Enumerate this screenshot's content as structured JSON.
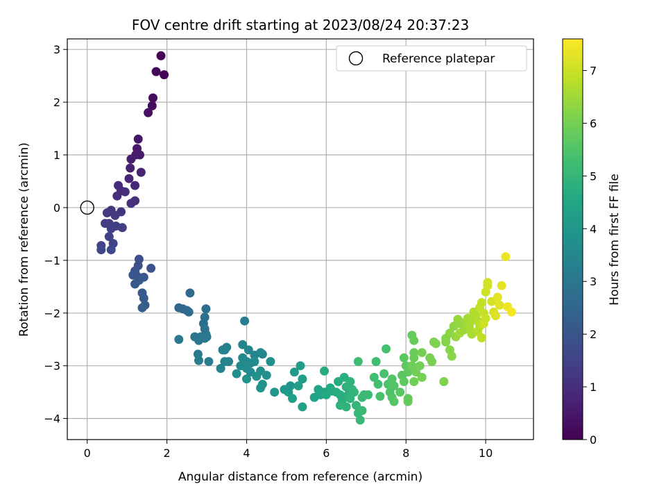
{
  "chart_data": {
    "type": "scatter",
    "title": "FOV centre drift starting at 2023/08/24 20:37:23",
    "xlabel": "Angular distance from reference (arcmin)",
    "ylabel": "Rotation from reference (arcmin)",
    "xlim": [
      -0.5,
      11.2
    ],
    "ylim": [
      -4.4,
      3.2
    ],
    "xticks": [
      0,
      2,
      4,
      6,
      8,
      10
    ],
    "yticks": [
      -4,
      -3,
      -2,
      -1,
      0,
      1,
      2,
      3
    ],
    "grid": true,
    "colormap": "viridis",
    "colorbar": {
      "label": "Hours from first FF file",
      "range": [
        0,
        7.6
      ],
      "ticks": [
        0,
        1,
        2,
        3,
        4,
        5,
        6,
        7
      ]
    },
    "legend": {
      "position": "top-right",
      "entries": [
        {
          "name": "Reference platepar",
          "marker": "open-circle"
        }
      ]
    },
    "reference_point": {
      "x": 0,
      "y": 0
    },
    "points": [
      [
        1.85,
        2.88,
        0.05
      ],
      [
        1.93,
        2.52,
        0.08
      ],
      [
        1.73,
        2.58,
        0.12
      ],
      [
        1.65,
        2.08,
        0.2
      ],
      [
        1.63,
        1.93,
        0.25
      ],
      [
        1.53,
        1.8,
        0.3
      ],
      [
        1.28,
        1.3,
        0.45
      ],
      [
        1.25,
        1.12,
        0.5
      ],
      [
        1.22,
        1.0,
        0.55
      ],
      [
        1.32,
        1.0,
        0.58
      ],
      [
        1.1,
        0.92,
        0.62
      ],
      [
        1.08,
        0.75,
        0.7
      ],
      [
        1.35,
        0.67,
        0.72
      ],
      [
        1.05,
        0.55,
        0.8
      ],
      [
        1.2,
        0.42,
        0.85
      ],
      [
        0.78,
        0.42,
        0.9
      ],
      [
        0.85,
        0.32,
        0.95
      ],
      [
        0.95,
        0.3,
        0.98
      ],
      [
        0.75,
        0.22,
        1.0
      ],
      [
        1.2,
        0.13,
        1.05
      ],
      [
        1.1,
        0.08,
        1.1
      ],
      [
        0.85,
        -0.08,
        1.15
      ],
      [
        0.6,
        -0.05,
        1.2
      ],
      [
        0.5,
        -0.1,
        1.25
      ],
      [
        0.7,
        -0.15,
        1.3
      ],
      [
        0.45,
        -0.3,
        1.32
      ],
      [
        0.55,
        -0.3,
        1.35
      ],
      [
        0.72,
        -0.35,
        1.38
      ],
      [
        0.88,
        -0.38,
        1.4
      ],
      [
        0.6,
        -0.4,
        1.42
      ],
      [
        0.55,
        -0.55,
        1.45
      ],
      [
        0.65,
        -0.68,
        1.5
      ],
      [
        0.35,
        -0.72,
        1.55
      ],
      [
        0.35,
        -0.8,
        1.6
      ],
      [
        0.6,
        -0.8,
        1.62
      ],
      [
        1.3,
        -0.98,
        1.8
      ],
      [
        1.28,
        -1.1,
        1.85
      ],
      [
        1.6,
        -1.15,
        1.9
      ],
      [
        1.2,
        -1.2,
        1.95
      ],
      [
        1.15,
        -1.28,
        2.0
      ],
      [
        1.25,
        -1.3,
        2.02
      ],
      [
        1.42,
        -1.32,
        2.05
      ],
      [
        1.3,
        -1.38,
        2.08
      ],
      [
        1.2,
        -1.45,
        2.1
      ],
      [
        1.38,
        -1.62,
        2.12
      ],
      [
        1.42,
        -1.72,
        2.15
      ],
      [
        1.45,
        -1.85,
        2.2
      ],
      [
        1.38,
        -1.9,
        2.25
      ],
      [
        2.3,
        -1.9,
        2.5
      ],
      [
        2.4,
        -1.92,
        2.55
      ],
      [
        2.5,
        -1.95,
        2.6
      ],
      [
        2.58,
        -1.62,
        2.65
      ],
      [
        2.55,
        -1.98,
        2.7
      ],
      [
        2.98,
        -1.92,
        2.75
      ],
      [
        2.95,
        -2.08,
        2.78
      ],
      [
        2.92,
        -2.2,
        2.8
      ],
      [
        2.95,
        -2.3,
        2.85
      ],
      [
        2.98,
        -2.4,
        2.88
      ],
      [
        3.0,
        -2.45,
        2.9
      ],
      [
        2.85,
        -2.45,
        2.92
      ],
      [
        2.7,
        -2.45,
        2.95
      ],
      [
        2.3,
        -2.5,
        3.0
      ],
      [
        2.8,
        -2.52,
        3.02
      ],
      [
        2.95,
        -2.48,
        3.05
      ],
      [
        2.78,
        -2.78,
        3.1
      ],
      [
        2.8,
        -2.9,
        3.12
      ],
      [
        3.05,
        -2.92,
        3.15
      ],
      [
        3.95,
        -2.15,
        3.2
      ],
      [
        3.45,
        -2.7,
        3.25
      ],
      [
        3.5,
        -2.65,
        3.28
      ],
      [
        3.4,
        -2.7,
        3.3
      ],
      [
        3.45,
        -2.92,
        3.32
      ],
      [
        3.35,
        -3.05,
        3.35
      ],
      [
        3.55,
        -2.92,
        3.38
      ],
      [
        3.9,
        -2.6,
        3.4
      ],
      [
        4.05,
        -2.7,
        3.42
      ],
      [
        4.2,
        -2.8,
        3.45
      ],
      [
        4.35,
        -2.75,
        3.48
      ],
      [
        4.4,
        -2.78,
        3.5
      ],
      [
        3.9,
        -2.85,
        3.52
      ],
      [
        4.0,
        -2.92,
        3.55
      ],
      [
        4.1,
        -2.95,
        3.58
      ],
      [
        4.2,
        -2.92,
        3.6
      ],
      [
        3.85,
        -3.0,
        3.62
      ],
      [
        4.0,
        -3.05,
        3.65
      ],
      [
        4.1,
        -3.12,
        3.68
      ],
      [
        3.75,
        -3.15,
        3.7
      ],
      [
        4.35,
        -3.1,
        3.72
      ],
      [
        4.5,
        -3.18,
        3.75
      ],
      [
        4.6,
        -2.92,
        3.78
      ],
      [
        4.25,
        -3.2,
        3.8
      ],
      [
        4.0,
        -3.25,
        3.82
      ],
      [
        4.4,
        -3.35,
        3.85
      ],
      [
        4.35,
        -3.42,
        3.88
      ],
      [
        4.7,
        -3.5,
        3.9
      ],
      [
        4.95,
        -3.45,
        3.95
      ],
      [
        5.1,
        -3.38,
        4.0
      ],
      [
        5.05,
        -3.5,
        4.05
      ],
      [
        5.2,
        -3.12,
        4.1
      ],
      [
        5.35,
        -3.0,
        4.15
      ],
      [
        5.4,
        -3.25,
        4.2
      ],
      [
        5.3,
        -3.38,
        4.22
      ],
      [
        5.15,
        -3.62,
        4.25
      ],
      [
        5.4,
        -3.78,
        4.3
      ],
      [
        5.7,
        -3.6,
        4.35
      ],
      [
        5.8,
        -3.45,
        4.4
      ],
      [
        5.95,
        -3.5,
        4.45
      ],
      [
        5.85,
        -3.55,
        4.5
      ],
      [
        6.1,
        -3.42,
        4.55
      ],
      [
        6.0,
        -3.55,
        4.6
      ],
      [
        6.15,
        -3.48,
        4.62
      ],
      [
        5.95,
        -3.1,
        4.65
      ],
      [
        6.3,
        -3.3,
        4.68
      ],
      [
        6.25,
        -3.5,
        4.7
      ],
      [
        6.35,
        -3.55,
        4.72
      ],
      [
        6.4,
        -3.65,
        4.75
      ],
      [
        6.45,
        -3.22,
        4.78
      ],
      [
        6.5,
        -3.4,
        4.8
      ],
      [
        6.55,
        -3.55,
        4.82
      ],
      [
        6.6,
        -3.3,
        4.85
      ],
      [
        6.6,
        -3.62,
        4.88
      ],
      [
        6.5,
        -3.78,
        4.9
      ],
      [
        6.35,
        -3.75,
        4.92
      ],
      [
        6.65,
        -3.45,
        4.95
      ],
      [
        6.7,
        -3.5,
        4.98
      ],
      [
        6.75,
        -3.75,
        5.0
      ],
      [
        6.8,
        -3.9,
        5.02
      ],
      [
        6.85,
        -4.03,
        5.05
      ],
      [
        6.9,
        -3.85,
        5.08
      ],
      [
        6.9,
        -3.6,
        5.1
      ],
      [
        6.95,
        -3.55,
        5.12
      ],
      [
        7.05,
        -3.55,
        5.15
      ],
      [
        6.8,
        -2.92,
        5.2
      ],
      [
        7.25,
        -2.92,
        5.25
      ],
      [
        7.2,
        -3.22,
        5.28
      ],
      [
        7.3,
        -3.35,
        5.3
      ],
      [
        7.5,
        -2.68,
        5.35
      ],
      [
        7.45,
        -3.15,
        5.38
      ],
      [
        7.35,
        -3.58,
        5.4
      ],
      [
        7.55,
        -3.35,
        5.45
      ],
      [
        7.6,
        -3.5,
        5.48
      ],
      [
        7.65,
        -3.25,
        5.5
      ],
      [
        7.7,
        -3.38,
        5.52
      ],
      [
        7.65,
        -3.6,
        5.55
      ],
      [
        7.7,
        -3.68,
        5.58
      ],
      [
        7.85,
        -3.5,
        5.6
      ],
      [
        7.9,
        -3.18,
        5.62
      ],
      [
        7.95,
        -2.85,
        5.65
      ],
      [
        8.0,
        -3.0,
        5.68
      ],
      [
        7.95,
        -3.3,
        5.7
      ],
      [
        8.05,
        -3.12,
        5.72
      ],
      [
        8.05,
        -3.62,
        5.75
      ],
      [
        8.05,
        -3.68,
        5.78
      ],
      [
        8.15,
        -2.42,
        5.8
      ],
      [
        8.2,
        -2.52,
        5.82
      ],
      [
        8.2,
        -2.75,
        5.85
      ],
      [
        8.2,
        -2.85,
        5.88
      ],
      [
        8.15,
        -3.0,
        5.9
      ],
      [
        8.25,
        -3.12,
        5.92
      ],
      [
        8.2,
        -3.3,
        5.95
      ],
      [
        8.35,
        -3.0,
        5.98
      ],
      [
        8.4,
        -2.75,
        6.0
      ],
      [
        8.4,
        -3.22,
        6.02
      ],
      [
        8.6,
        -2.85,
        6.05
      ],
      [
        8.65,
        -2.92,
        6.08
      ],
      [
        8.7,
        -2.55,
        6.1
      ],
      [
        8.75,
        -2.58,
        6.12
      ],
      [
        8.95,
        -3.3,
        6.15
      ],
      [
        9.0,
        -2.48,
        6.18
      ],
      [
        9.0,
        -2.55,
        6.2
      ],
      [
        9.1,
        -2.7,
        6.22
      ],
      [
        9.15,
        -2.82,
        6.25
      ],
      [
        9.1,
        -2.38,
        6.28
      ],
      [
        9.2,
        -2.25,
        6.3
      ],
      [
        9.3,
        -2.2,
        6.35
      ],
      [
        9.25,
        -2.45,
        6.38
      ],
      [
        9.3,
        -2.12,
        6.4
      ],
      [
        9.4,
        -2.18,
        6.42
      ],
      [
        9.45,
        -2.32,
        6.45
      ],
      [
        9.5,
        -2.28,
        6.48
      ],
      [
        9.35,
        -2.38,
        6.5
      ],
      [
        9.55,
        -2.1,
        6.55
      ],
      [
        9.6,
        -2.2,
        6.58
      ],
      [
        9.65,
        -2.4,
        6.6
      ],
      [
        9.6,
        -2.3,
        6.62
      ],
      [
        9.7,
        -2.12,
        6.65
      ],
      [
        9.7,
        -1.98,
        6.7
      ],
      [
        9.75,
        -2.05,
        6.72
      ],
      [
        9.8,
        -2.15,
        6.75
      ],
      [
        9.85,
        -2.25,
        6.78
      ],
      [
        9.8,
        -2.35,
        6.8
      ],
      [
        9.9,
        -2.47,
        6.85
      ],
      [
        9.85,
        -1.9,
        6.88
      ],
      [
        9.9,
        -1.8,
        6.9
      ],
      [
        9.95,
        -2.0,
        6.95
      ],
      [
        10.0,
        -2.1,
        7.0
      ],
      [
        9.95,
        -2.2,
        7.02
      ],
      [
        10.0,
        -1.6,
        7.05
      ],
      [
        10.05,
        -1.42,
        7.08
      ],
      [
        10.05,
        -1.48,
        7.1
      ],
      [
        10.15,
        -1.78,
        7.12
      ],
      [
        10.2,
        -1.98,
        7.15
      ],
      [
        10.25,
        -2.05,
        7.2
      ],
      [
        10.35,
        -1.85,
        7.25
      ],
      [
        10.3,
        -1.7,
        7.28
      ],
      [
        10.4,
        -1.48,
        7.3
      ],
      [
        10.5,
        -0.93,
        7.4
      ],
      [
        10.55,
        -1.88,
        7.45
      ],
      [
        10.65,
        -1.98,
        7.5
      ]
    ]
  }
}
